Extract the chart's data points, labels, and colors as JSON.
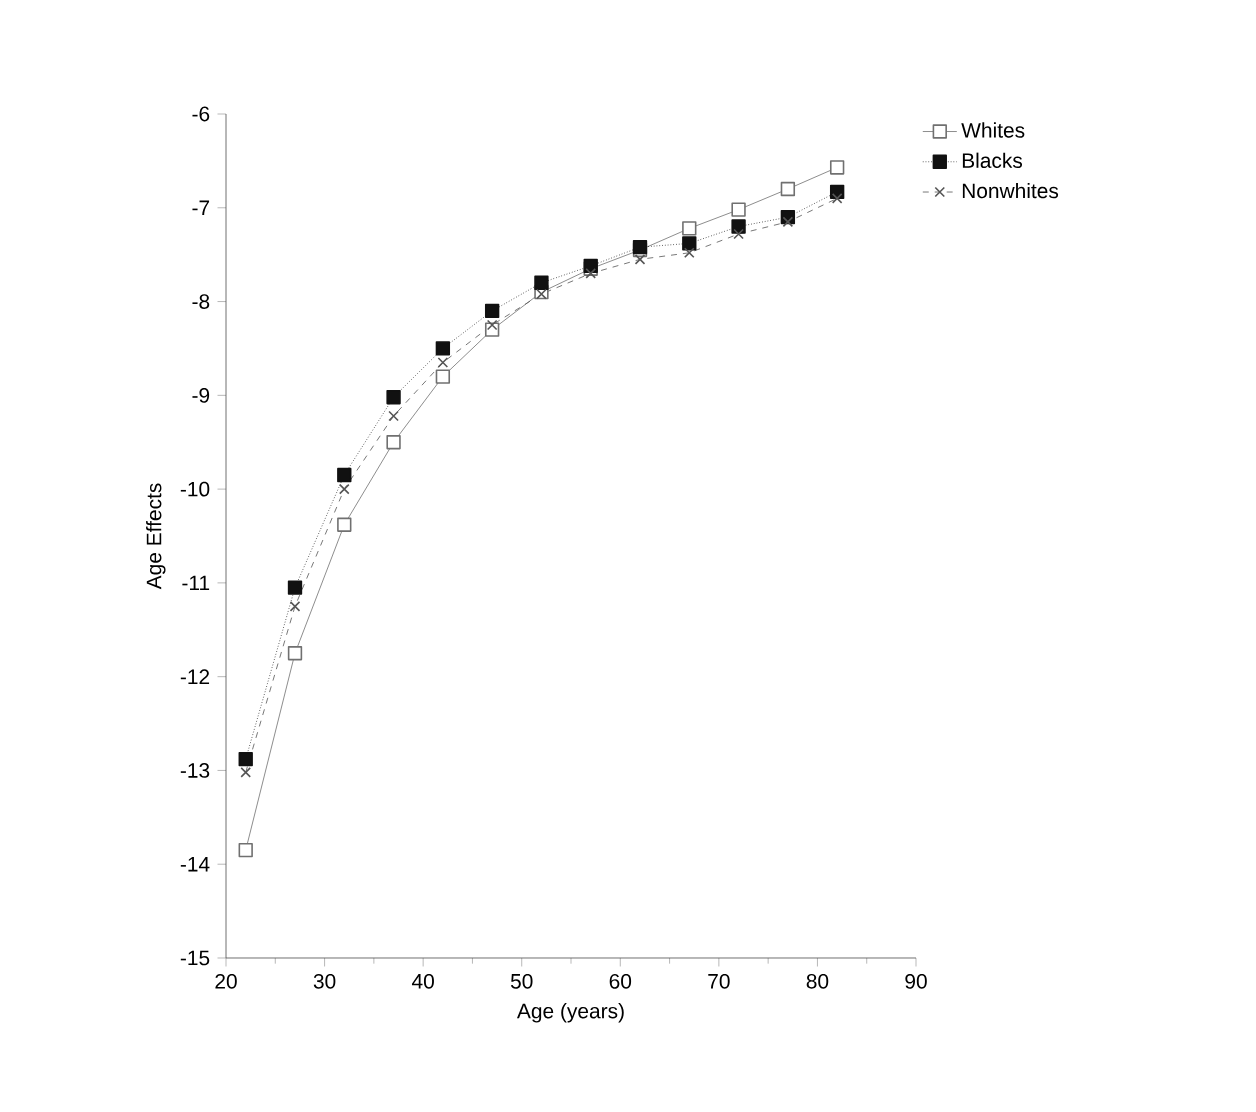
{
  "chart_data": {
    "type": "line",
    "xlabel": "Age (years)",
    "ylabel": "Age Effects",
    "x": [
      22,
      27,
      32,
      37,
      42,
      47,
      52,
      57,
      62,
      67,
      72,
      77,
      82
    ],
    "series": [
      {
        "name": "Whites",
        "color": "#707070",
        "marker": "square",
        "line_style": "solid",
        "values": [
          -13.85,
          -11.75,
          -10.38,
          -9.5,
          -8.8,
          -8.3,
          -7.9,
          -7.65,
          -7.45,
          -7.22,
          -7.02,
          -6.8,
          -6.57
        ]
      },
      {
        "name": "Blacks",
        "color": "#111111",
        "marker": "square",
        "line_style": "dotted",
        "values": [
          -12.88,
          -11.05,
          -9.85,
          -9.02,
          -8.5,
          -8.1,
          -7.8,
          -7.62,
          -7.42,
          -7.38,
          -7.2,
          -7.1,
          -6.83
        ]
      },
      {
        "name": "Nonwhites",
        "color": "#555555",
        "marker": "cross",
        "line_style": "dashed",
        "values": [
          -13.02,
          -11.25,
          -10.0,
          -9.22,
          -8.65,
          -8.25,
          -7.92,
          -7.7,
          -7.55,
          -7.48,
          -7.28,
          -7.15,
          -6.9
        ]
      }
    ],
    "xlim": [
      20,
      90
    ],
    "xticks": [
      20,
      30,
      40,
      50,
      60,
      70,
      80,
      90
    ],
    "ylim": [
      -15,
      -6
    ],
    "yticks": [
      -15,
      -14,
      -13,
      -12,
      -11,
      -10,
      -9,
      -8,
      -7,
      -6
    ],
    "legend": "top right",
    "grid": false
  }
}
